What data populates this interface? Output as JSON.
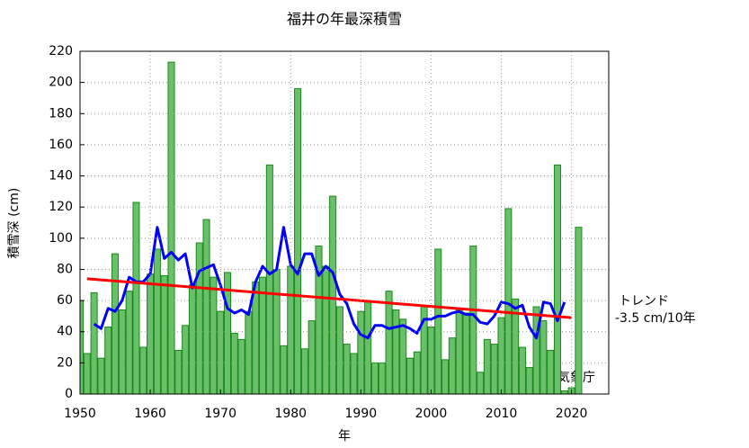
{
  "chart_data": {
    "type": "bar",
    "title": "福井の年最深積雪",
    "x_label": "年",
    "y_label": "積雪深 (cm)",
    "x": [
      1950,
      1951,
      1952,
      1953,
      1954,
      1955,
      1956,
      1957,
      1958,
      1959,
      1960,
      1961,
      1962,
      1963,
      1964,
      1965,
      1966,
      1967,
      1968,
      1969,
      1970,
      1971,
      1972,
      1973,
      1974,
      1975,
      1976,
      1977,
      1978,
      1979,
      1980,
      1981,
      1982,
      1983,
      1984,
      1985,
      1986,
      1987,
      1988,
      1989,
      1990,
      1991,
      1992,
      1993,
      1994,
      1995,
      1996,
      1997,
      1998,
      1999,
      2000,
      2001,
      2002,
      2003,
      2004,
      2005,
      2006,
      2007,
      2008,
      2009,
      2010,
      2011,
      2012,
      2013,
      2014,
      2015,
      2016,
      2017,
      2018,
      2019,
      2020,
      2021
    ],
    "series": [
      {
        "color": "#6abf6a",
        "values": [
          60,
          26,
          65,
          23,
          43,
          90,
          54,
          66,
          123,
          30,
          77,
          93,
          76,
          213,
          28,
          44,
          70,
          97,
          112,
          75,
          53,
          78,
          39,
          35,
          53,
          72,
          75,
          147,
          80,
          31,
          82,
          196,
          29,
          47,
          95,
          82,
          127,
          56,
          32,
          26,
          53,
          60,
          20,
          20,
          66,
          54,
          48,
          23,
          27,
          56,
          43,
          93,
          22,
          36,
          54,
          52,
          95,
          14,
          35,
          32,
          49,
          119,
          61,
          30,
          17,
          56,
          47,
          28,
          147,
          2,
          4,
          107
        ]
      },
      {
        "color": "#0000ff",
        "values": [
          null,
          null,
          45,
          42,
          55,
          53,
          60,
          75,
          72,
          72,
          77,
          107,
          87,
          91,
          86,
          90,
          68,
          79,
          81,
          83,
          70,
          55,
          52,
          54,
          51,
          72,
          82,
          77,
          80,
          107,
          83,
          77,
          90,
          90,
          76,
          82,
          78,
          64,
          58,
          45,
          38,
          36,
          44,
          44,
          42,
          43,
          44,
          42,
          39,
          48,
          48,
          50,
          50,
          52,
          53,
          51,
          51,
          46,
          45,
          50,
          59,
          58,
          55,
          57,
          43,
          36,
          59,
          58,
          47,
          59,
          null,
          null
        ]
      }
    ],
    "trend": {
      "color": "#ff0000",
      "x": [
        1951,
        2020
      ],
      "values": [
        74,
        49
      ]
    },
    "annotations": [
      "トレンド",
      "-3.5 cm/10年",
      "気象庁"
    ],
    "xlim": [
      1950,
      2025.3
    ],
    "ylim": [
      0,
      220
    ],
    "xticks": [
      1950,
      1960,
      1970,
      1980,
      1990,
      2000,
      2010,
      2020
    ],
    "yticks": [
      0,
      20,
      40,
      60,
      80,
      100,
      120,
      140,
      160,
      180,
      200,
      220
    ],
    "grid": true
  }
}
